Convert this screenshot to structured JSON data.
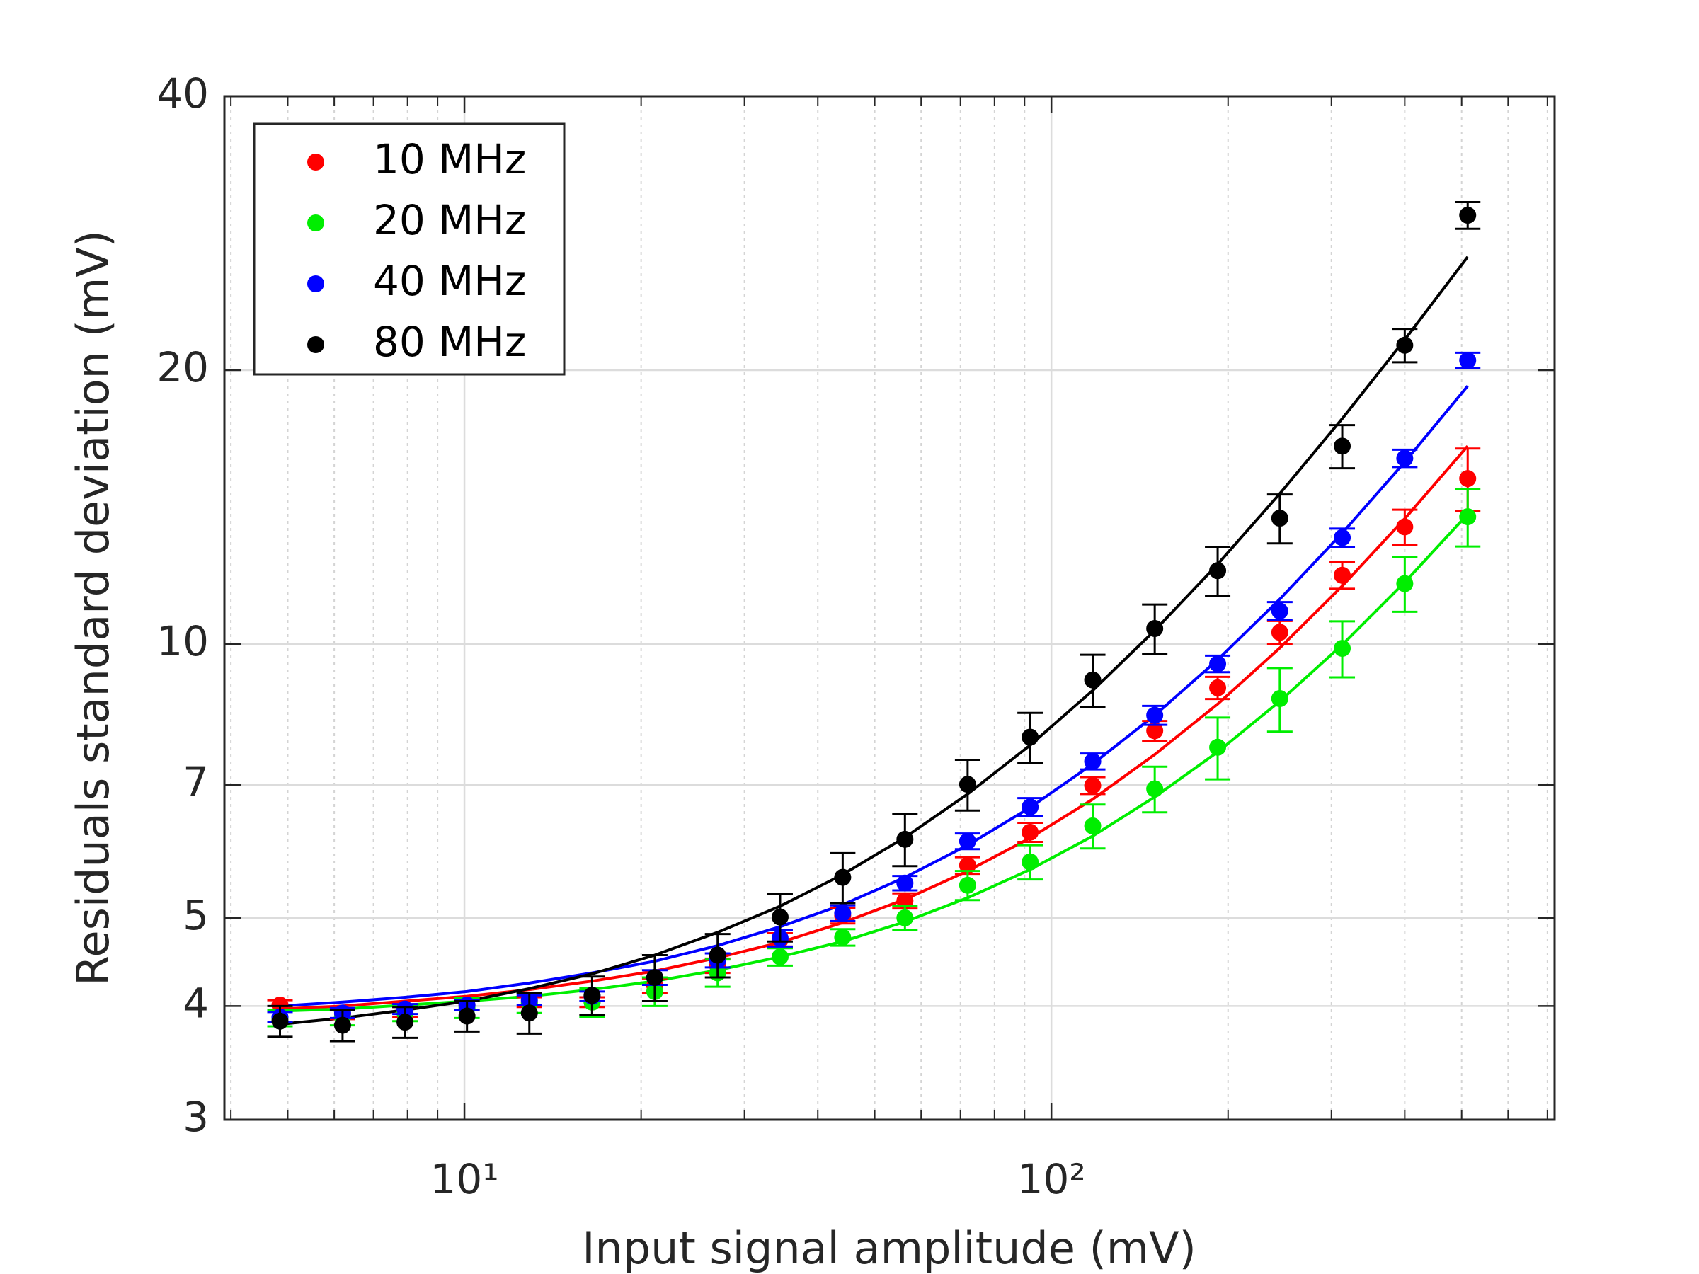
{
  "chart_data": {
    "type": "scatter",
    "xlabel": "Input signal amplitude (mV)",
    "ylabel": "Residuals standard deviation (mV)",
    "x": [
      4.85,
      6.2,
      7.92,
      10.1,
      12.9,
      16.5,
      21.1,
      27.0,
      34.5,
      44.1,
      56.3,
      72.0,
      92,
      117.6,
      150,
      192,
      245,
      313,
      400,
      512
    ],
    "xlim": [
      3.9,
      720
    ],
    "ylim": [
      3,
      40
    ],
    "xscale": "log",
    "yscale": "log",
    "xticks": [
      {
        "value": 10,
        "label": "10¹"
      },
      {
        "value": 100,
        "label": "10²"
      }
    ],
    "xminor_ticks": [
      4,
      5,
      6,
      7,
      8,
      9,
      20,
      30,
      40,
      50,
      60,
      70,
      80,
      90,
      200,
      300,
      400,
      500,
      600,
      700
    ],
    "yticks": [
      3,
      4,
      5,
      7,
      10,
      20,
      40
    ],
    "grid": true,
    "legend": "northwest",
    "series": [
      {
        "name": "10 MHz",
        "color": "#ff0000",
        "values": [
          4.01,
          3.92,
          3.94,
          4.01,
          4.04,
          4.04,
          4.21,
          4.43,
          4.73,
          5.03,
          5.22,
          5.71,
          6.21,
          6.99,
          8.03,
          8.95,
          10.3,
          11.9,
          13.45,
          15.2
        ],
        "errors": [
          0.05,
          0.05,
          0.05,
          0.05,
          0.05,
          0.05,
          0.08,
          0.08,
          0.08,
          0.1,
          0.1,
          0.12,
          0.15,
          0.15,
          0.2,
          0.25,
          0.3,
          0.4,
          0.6,
          1.2
        ],
        "fit": [
          3.97,
          4.0,
          4.05,
          4.1,
          4.17,
          4.26,
          4.37,
          4.52,
          4.7,
          4.94,
          5.24,
          5.63,
          6.12,
          6.75,
          7.56,
          8.59,
          9.9,
          11.58,
          13.73,
          16.5
        ]
      },
      {
        "name": "20 MHz",
        "color": "#00ee00",
        "values": [
          3.88,
          3.89,
          3.93,
          3.98,
          4.03,
          4.04,
          4.15,
          4.35,
          4.53,
          4.76,
          5.0,
          5.43,
          5.76,
          6.31,
          6.93,
          7.7,
          8.71,
          9.89,
          11.65,
          13.8
        ],
        "errors": [
          0.08,
          0.08,
          0.08,
          0.1,
          0.1,
          0.15,
          0.15,
          0.15,
          0.1,
          0.1,
          0.15,
          0.2,
          0.25,
          0.35,
          0.4,
          0.6,
          0.7,
          0.7,
          0.8,
          1.0
        ],
        "fit": [
          3.95,
          3.97,
          4.01,
          4.05,
          4.1,
          4.17,
          4.26,
          4.38,
          4.53,
          4.71,
          4.95,
          5.26,
          5.65,
          6.15,
          6.79,
          7.61,
          8.65,
          9.98,
          11.69,
          13.89
        ]
      },
      {
        "name": "40 MHz",
        "color": "#0000ff",
        "values": [
          3.89,
          3.93,
          3.97,
          4.01,
          4.06,
          4.1,
          4.3,
          4.49,
          4.75,
          5.06,
          5.46,
          6.07,
          6.62,
          7.43,
          8.35,
          9.51,
          10.87,
          13.09,
          16.0,
          20.5
        ],
        "errors": [
          0.05,
          0.05,
          0.05,
          0.05,
          0.05,
          0.05,
          0.08,
          0.08,
          0.1,
          0.1,
          0.1,
          0.12,
          0.15,
          0.15,
          0.2,
          0.2,
          0.25,
          0.3,
          0.35,
          0.4
        ],
        "fit": [
          4.0,
          4.04,
          4.09,
          4.15,
          4.24,
          4.35,
          4.48,
          4.66,
          4.89,
          5.17,
          5.54,
          6.01,
          6.61,
          7.38,
          8.35,
          9.61,
          11.2,
          13.24,
          15.85,
          19.21
        ]
      },
      {
        "name": "80 MHz",
        "color": "#000000",
        "values": [
          3.85,
          3.81,
          3.84,
          3.9,
          3.93,
          4.11,
          4.3,
          4.55,
          5.01,
          5.54,
          6.1,
          7.01,
          7.9,
          9.13,
          10.4,
          12.04,
          13.75,
          16.5,
          21.3,
          29.6
        ],
        "errors": [
          0.15,
          0.15,
          0.15,
          0.15,
          0.2,
          0.2,
          0.25,
          0.25,
          0.3,
          0.35,
          0.4,
          0.45,
          0.5,
          0.6,
          0.65,
          0.75,
          0.85,
          0.9,
          0.9,
          1.0
        ],
        "fit": [
          3.82,
          3.88,
          3.96,
          4.05,
          4.18,
          4.34,
          4.55,
          4.82,
          5.15,
          5.58,
          6.13,
          6.84,
          7.74,
          8.89,
          10.35,
          12.24,
          14.63,
          17.69,
          21.6,
          26.64
        ]
      }
    ]
  }
}
